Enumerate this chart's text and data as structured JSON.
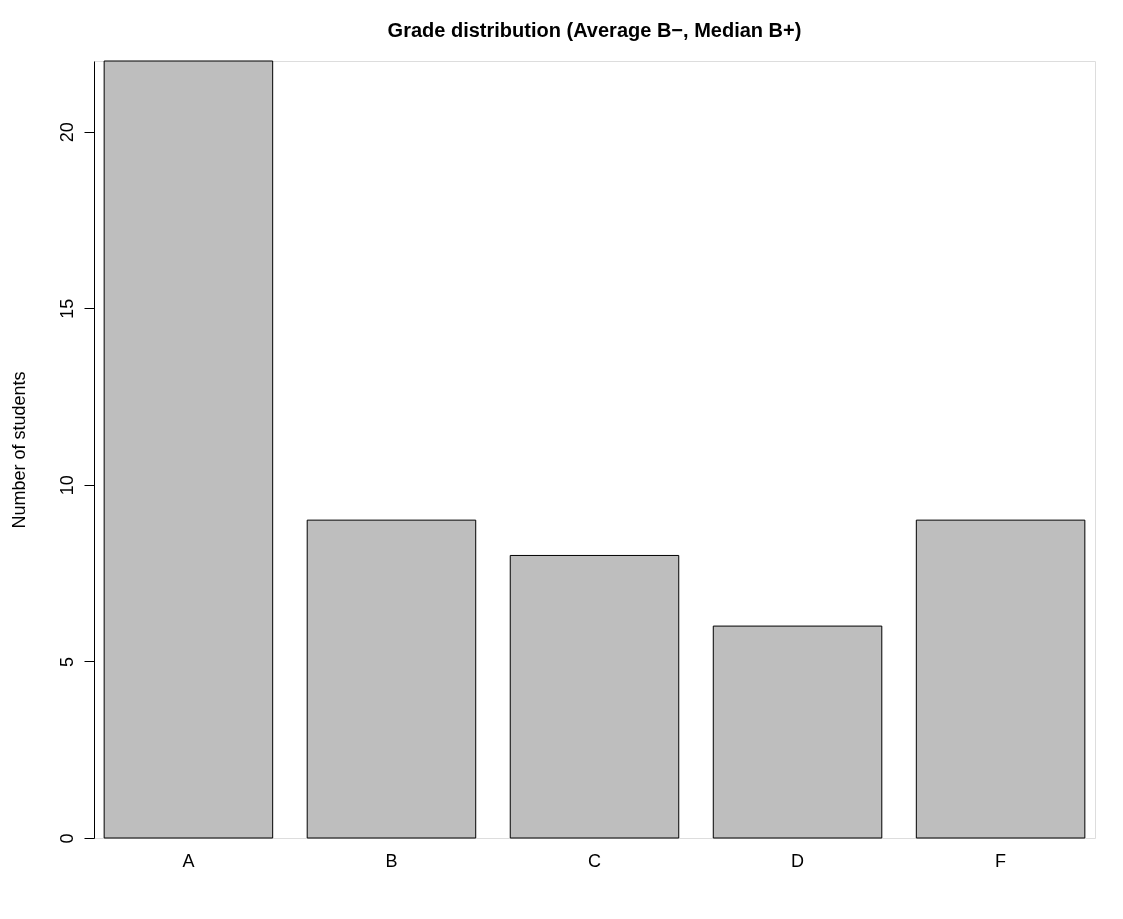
{
  "chart_data": {
    "type": "bar",
    "title": "Grade distribution (Average B−, Median B+)",
    "ylabel": "Number of students",
    "categories": [
      "A",
      "B",
      "C",
      "D",
      "F"
    ],
    "values": [
      22,
      9,
      8,
      6,
      9
    ],
    "color": "#bebebe",
    "ylim": [
      0,
      22
    ],
    "yticks": [
      0,
      5,
      10,
      15,
      20
    ],
    "grid": false
  }
}
